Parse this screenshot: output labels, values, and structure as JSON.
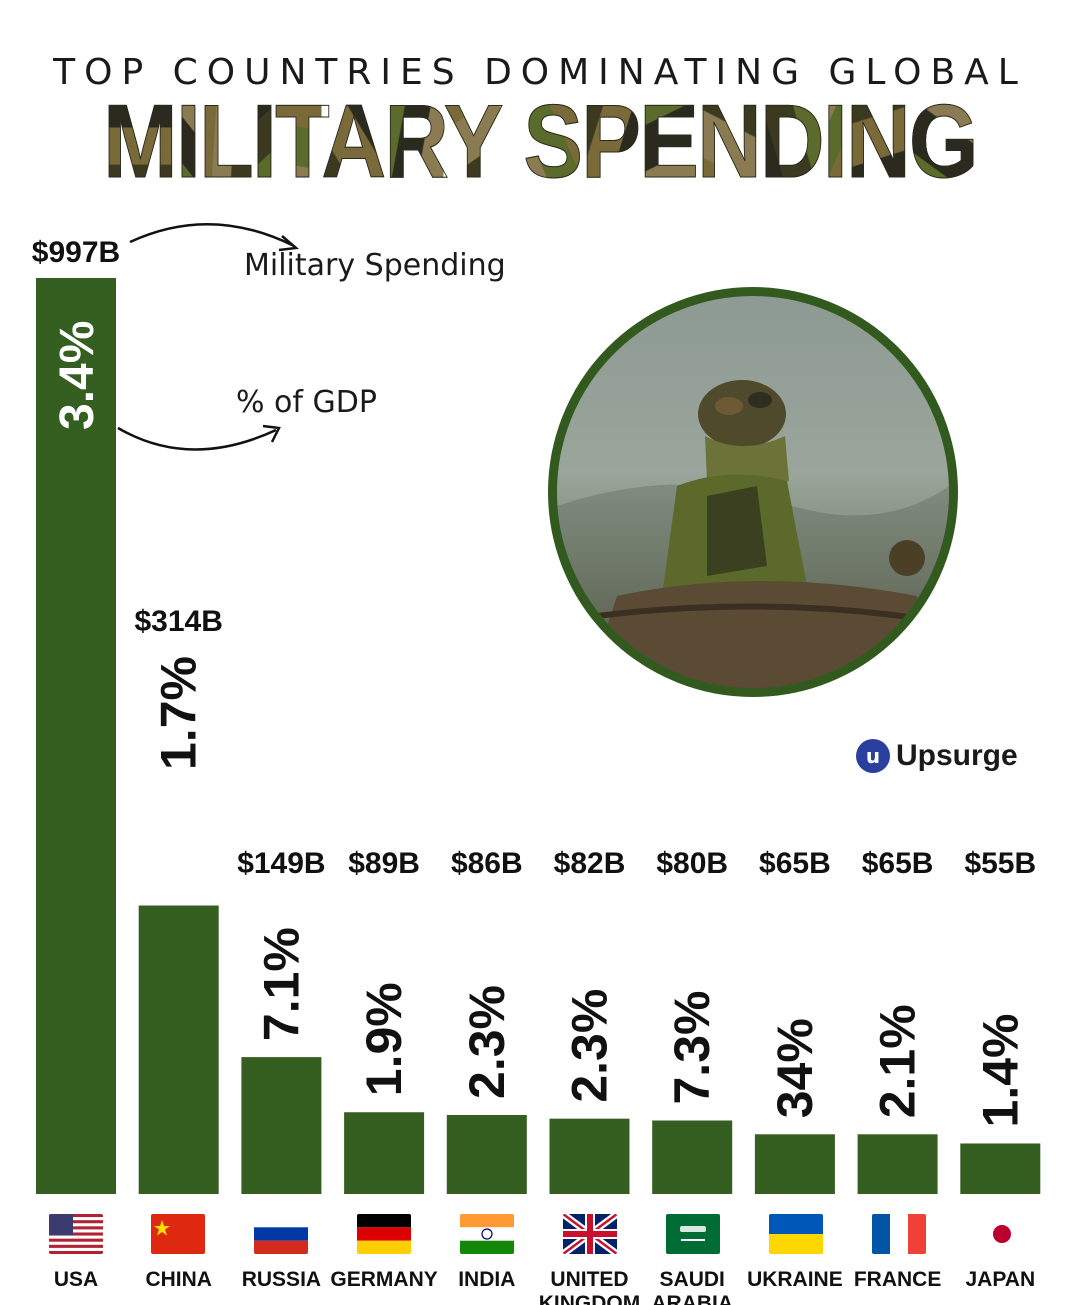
{
  "title": {
    "line1": "TOP COUNTRIES DOMINATING GLOBAL",
    "line2": "MILITARY SPENDING"
  },
  "legend": {
    "spending_label": "Military Spending",
    "gdp_label": "% of GDP"
  },
  "brand": {
    "name": "Upsurge",
    "mark": "u"
  },
  "colors": {
    "bar": "#355e21",
    "camo": [
      "#3b3a20",
      "#5b6b2c",
      "#7a6a3a",
      "#2a2a1e",
      "#8b7b52"
    ]
  },
  "photo": {
    "icon": "soldier-photo"
  },
  "chart_data": {
    "type": "bar",
    "title": "TOP COUNTRIES DOMINATING GLOBAL MILITARY SPENDING",
    "categories": [
      "USA",
      "CHINA",
      "RUSSIA",
      "GERMANY",
      "INDIA",
      "UNITED KINGDOM",
      "SAUDI ARABIA",
      "UKRAINE",
      "FRANCE",
      "JAPAN"
    ],
    "series": [
      {
        "name": "Military Spending",
        "values": [
          997,
          314,
          149,
          89,
          86,
          82,
          80,
          65,
          65,
          55
        ],
        "unit": "B USD"
      }
    ],
    "spending_labels": [
      "$997B",
      "$314B",
      "$149B",
      "$89B",
      "$86B",
      "$82B",
      "$80B",
      "$65B",
      "$65B",
      "$55B"
    ],
    "gdp_percent_labels": [
      "3.4%",
      "1.7%",
      "7.1%",
      "1.9%",
      "2.3%",
      "2.3%",
      "7.3%",
      "34%",
      "2.1%",
      "1.4%"
    ],
    "flags": [
      "usa-flag",
      "china-flag",
      "russia-flag",
      "germany-flag",
      "india-flag",
      "uk-flag",
      "saudi-flag",
      "ukraine-flag",
      "france-flag",
      "japan-flag"
    ],
    "grid": false,
    "legend": "none"
  }
}
